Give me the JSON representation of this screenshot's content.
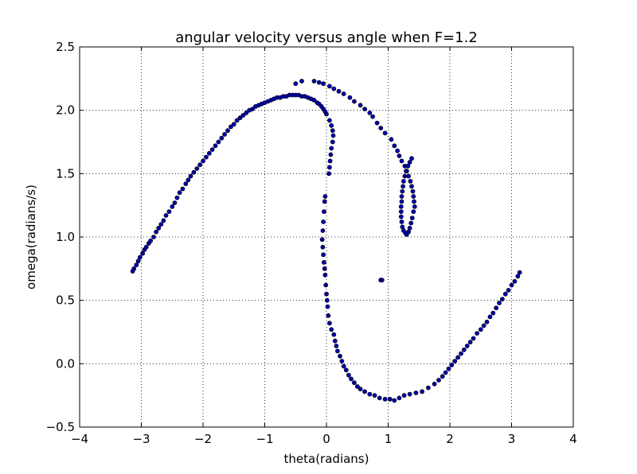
{
  "chart_data": {
    "type": "scatter",
    "title": "angular velocity versus angle when F=1.2",
    "xlabel": "theta(radians)",
    "ylabel": "omega(radians/s)",
    "xlim": [
      -4,
      4
    ],
    "ylim": [
      -0.5,
      2.5
    ],
    "xticks": [
      -4,
      -3,
      -2,
      -1,
      0,
      1,
      2,
      3,
      4
    ],
    "yticks": [
      -0.5,
      0.0,
      0.5,
      1.0,
      1.5,
      2.0,
      2.5
    ],
    "xtick_labels": [
      "−4",
      "−3",
      "−2",
      "−1",
      "0",
      "1",
      "2",
      "3",
      "4"
    ],
    "ytick_labels": [
      "−0.5",
      "0.0",
      "0.5",
      "1.0",
      "1.5",
      "2.0",
      "2.5"
    ],
    "grid": true,
    "marker_color": "#0000aa",
    "marker_edge": "#000000",
    "series": [
      {
        "points": [
          [
            -3.14,
            0.73
          ],
          [
            -3.12,
            0.75
          ],
          [
            -3.08,
            0.78
          ],
          [
            -3.05,
            0.81
          ],
          [
            -3.02,
            0.84
          ],
          [
            -2.98,
            0.87
          ],
          [
            -2.95,
            0.9
          ],
          [
            -2.92,
            0.92
          ],
          [
            -2.88,
            0.95
          ],
          [
            -2.85,
            0.97
          ],
          [
            -2.8,
            1.0
          ],
          [
            -2.76,
            1.04
          ],
          [
            -2.72,
            1.07
          ],
          [
            -2.68,
            1.1
          ],
          [
            -2.64,
            1.13
          ],
          [
            -2.6,
            1.17
          ],
          [
            -2.55,
            1.2
          ],
          [
            -2.5,
            1.24
          ],
          [
            -2.46,
            1.27
          ],
          [
            -2.42,
            1.31
          ],
          [
            -2.38,
            1.35
          ],
          [
            -2.33,
            1.38
          ],
          [
            -2.28,
            1.42
          ],
          [
            -2.24,
            1.45
          ],
          [
            -2.2,
            1.48
          ],
          [
            -2.15,
            1.51
          ],
          [
            -2.1,
            1.54
          ],
          [
            -2.05,
            1.57
          ],
          [
            -2.0,
            1.6
          ],
          [
            -1.95,
            1.63
          ],
          [
            -1.9,
            1.66
          ],
          [
            -1.85,
            1.69
          ],
          [
            -1.8,
            1.72
          ],
          [
            -1.75,
            1.75
          ],
          [
            -1.7,
            1.78
          ],
          [
            -1.65,
            1.81
          ],
          [
            -1.6,
            1.84
          ],
          [
            -1.55,
            1.87
          ],
          [
            -1.5,
            1.89
          ],
          [
            -1.45,
            1.92
          ],
          [
            -1.4,
            1.94
          ],
          [
            -1.35,
            1.96
          ],
          [
            -1.3,
            1.98
          ],
          [
            -1.25,
            2.0
          ],
          [
            -1.2,
            2.01
          ],
          [
            -1.15,
            2.03
          ],
          [
            -1.1,
            2.04
          ],
          [
            -1.05,
            2.05
          ],
          [
            -1.0,
            2.06
          ],
          [
            -0.95,
            2.07
          ],
          [
            -0.9,
            2.08
          ],
          [
            -0.85,
            2.09
          ],
          [
            -0.8,
            2.1
          ],
          [
            -0.75,
            2.1
          ],
          [
            -0.7,
            2.11
          ],
          [
            -0.65,
            2.11
          ],
          [
            -0.6,
            2.12
          ],
          [
            -0.55,
            2.12
          ],
          [
            -0.5,
            2.12
          ],
          [
            -0.45,
            2.12
          ],
          [
            -0.4,
            2.11
          ],
          [
            -0.35,
            2.11
          ],
          [
            -0.3,
            2.1
          ],
          [
            -0.25,
            2.09
          ],
          [
            -0.2,
            2.08
          ],
          [
            -0.15,
            2.06
          ],
          [
            -0.12,
            2.05
          ],
          [
            -0.08,
            2.03
          ],
          [
            -0.05,
            2.01
          ],
          [
            -0.02,
            1.99
          ],
          [
            -0.5,
            2.21
          ],
          [
            -0.4,
            2.23
          ],
          [
            -0.2,
            2.23
          ],
          [
            -0.12,
            2.22
          ],
          [
            -0.05,
            2.21
          ],
          [
            0.05,
            2.19
          ],
          [
            0.12,
            2.17
          ],
          [
            0.2,
            2.15
          ],
          [
            0.28,
            2.13
          ],
          [
            0.38,
            2.1
          ],
          [
            0.45,
            2.07
          ],
          [
            0.55,
            2.04
          ],
          [
            0.62,
            2.01
          ],
          [
            0.7,
            1.98
          ],
          [
            0.75,
            1.95
          ],
          [
            0.82,
            1.9
          ],
          [
            0.88,
            1.86
          ],
          [
            0.95,
            1.82
          ],
          [
            1.05,
            1.77
          ],
          [
            1.1,
            1.72
          ],
          [
            1.15,
            1.68
          ],
          [
            1.18,
            1.64
          ],
          [
            1.22,
            1.6
          ],
          [
            1.27,
            1.56
          ],
          [
            1.3,
            1.52
          ],
          [
            1.33,
            1.48
          ],
          [
            1.36,
            1.44
          ],
          [
            1.38,
            1.4
          ],
          [
            1.4,
            1.36
          ],
          [
            1.41,
            1.32
          ],
          [
            1.42,
            1.28
          ],
          [
            1.43,
            1.24
          ],
          [
            1.41,
            1.2
          ],
          [
            1.39,
            1.15
          ],
          [
            1.37,
            1.11
          ],
          [
            1.35,
            1.07
          ],
          [
            1.33,
            1.04
          ],
          [
            1.3,
            1.02
          ],
          [
            1.28,
            1.03
          ],
          [
            1.25,
            1.05
          ],
          [
            1.23,
            1.08
          ],
          [
            1.22,
            1.12
          ],
          [
            1.21,
            1.16
          ],
          [
            1.21,
            1.2
          ],
          [
            1.21,
            1.24
          ],
          [
            1.22,
            1.28
          ],
          [
            1.22,
            1.32
          ],
          [
            1.23,
            1.36
          ],
          [
            1.24,
            1.4
          ],
          [
            1.25,
            1.44
          ],
          [
            1.27,
            1.48
          ],
          [
            1.29,
            1.52
          ],
          [
            1.32,
            1.56
          ],
          [
            1.35,
            1.59
          ],
          [
            1.38,
            1.62
          ],
          [
            0.0,
            1.97
          ],
          [
            0.05,
            1.92
          ],
          [
            0.08,
            1.88
          ],
          [
            0.1,
            1.84
          ],
          [
            0.11,
            1.8
          ],
          [
            0.1,
            1.75
          ],
          [
            0.08,
            1.7
          ],
          [
            0.07,
            1.65
          ],
          [
            0.06,
            1.6
          ],
          [
            0.05,
            1.55
          ],
          [
            0.04,
            1.5
          ],
          [
            -0.02,
            1.32
          ],
          [
            -0.03,
            1.28
          ],
          [
            -0.04,
            1.2
          ],
          [
            -0.05,
            1.12
          ],
          [
            -0.06,
            1.05
          ],
          [
            -0.07,
            0.98
          ],
          [
            -0.06,
            0.92
          ],
          [
            -0.05,
            0.86
          ],
          [
            -0.04,
            0.8
          ],
          [
            -0.03,
            0.75
          ],
          [
            -0.02,
            0.7
          ],
          [
            -0.01,
            0.62
          ],
          [
            0.0,
            0.55
          ],
          [
            0.01,
            0.5
          ],
          [
            0.02,
            0.45
          ],
          [
            0.03,
            0.38
          ],
          [
            0.05,
            0.32
          ],
          [
            0.08,
            0.27
          ],
          [
            0.12,
            0.23
          ],
          [
            0.14,
            0.18
          ],
          [
            0.16,
            0.14
          ],
          [
            0.18,
            0.1
          ],
          [
            0.22,
            0.06
          ],
          [
            0.25,
            0.02
          ],
          [
            0.28,
            -0.02
          ],
          [
            0.32,
            -0.05
          ],
          [
            0.36,
            -0.09
          ],
          [
            0.4,
            -0.12
          ],
          [
            0.45,
            -0.15
          ],
          [
            0.5,
            -0.18
          ],
          [
            0.55,
            -0.2
          ],
          [
            0.62,
            -0.22
          ],
          [
            0.7,
            -0.24
          ],
          [
            0.78,
            -0.25
          ],
          [
            0.86,
            -0.27
          ],
          [
            0.95,
            -0.28
          ],
          [
            1.03,
            -0.28
          ],
          [
            1.1,
            -0.29
          ],
          [
            1.18,
            -0.27
          ],
          [
            1.26,
            -0.25
          ],
          [
            1.35,
            -0.24
          ],
          [
            1.45,
            -0.23
          ],
          [
            1.55,
            -0.22
          ],
          [
            1.65,
            -0.19
          ],
          [
            1.75,
            -0.16
          ],
          [
            1.82,
            -0.13
          ],
          [
            1.88,
            -0.1
          ],
          [
            1.93,
            -0.07
          ],
          [
            1.98,
            -0.04
          ],
          [
            2.03,
            -0.01
          ],
          [
            2.08,
            0.02
          ],
          [
            2.13,
            0.05
          ],
          [
            2.18,
            0.08
          ],
          [
            2.23,
            0.11
          ],
          [
            2.28,
            0.14
          ],
          [
            2.33,
            0.17
          ],
          [
            2.38,
            0.2
          ],
          [
            2.44,
            0.24
          ],
          [
            2.5,
            0.27
          ],
          [
            2.55,
            0.3
          ],
          [
            2.6,
            0.33
          ],
          [
            2.65,
            0.37
          ],
          [
            2.7,
            0.4
          ],
          [
            2.75,
            0.44
          ],
          [
            2.8,
            0.48
          ],
          [
            2.85,
            0.51
          ],
          [
            2.9,
            0.55
          ],
          [
            2.95,
            0.58
          ],
          [
            3.0,
            0.62
          ],
          [
            3.05,
            0.65
          ],
          [
            3.1,
            0.69
          ],
          [
            3.13,
            0.72
          ],
          [
            0.88,
            0.66
          ],
          [
            0.9,
            0.66
          ]
        ]
      }
    ]
  }
}
